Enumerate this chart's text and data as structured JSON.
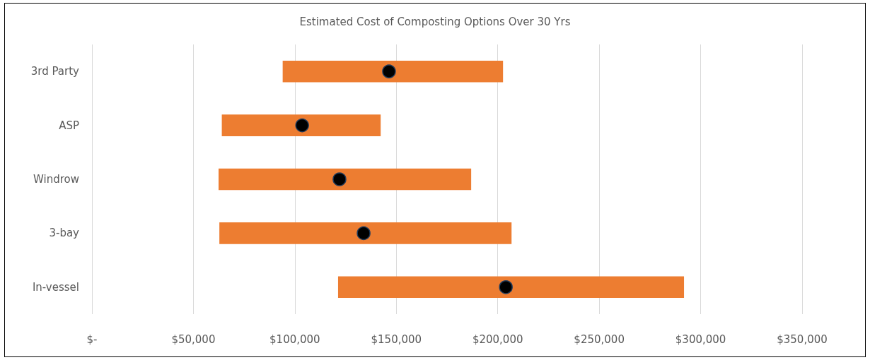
{
  "chart_data": {
    "type": "bar",
    "orientation": "horizontal",
    "title": "Estimated Cost of Composting Options Over 30 Yrs",
    "categories": [
      "3rd Party",
      "ASP",
      "Windrow",
      "3-bay",
      "In-vessel"
    ],
    "series": [
      {
        "color": "#ed7d31",
        "base": [
          94000,
          64000,
          62400,
          62800,
          121300
        ],
        "values": [
          108600,
          78300,
          124500,
          144000,
          170500
        ]
      },
      {
        "type": "scatter",
        "color": "#000000",
        "x": [
          "3rd Party",
          "ASP",
          "Windrow",
          "3-bay",
          "In-vessel"
        ],
        "values": [
          146400,
          103600,
          122000,
          133900,
          204000
        ]
      }
    ],
    "xlim": [
      0,
      350000
    ],
    "xticks": [
      {
        "value": 0,
        "label": "$-"
      },
      {
        "value": 50000,
        "label": "$50,000"
      },
      {
        "value": 100000,
        "label": "$100,000"
      },
      {
        "value": 150000,
        "label": "$150,000"
      },
      {
        "value": 200000,
        "label": "$200,000"
      },
      {
        "value": 250000,
        "label": "$250,000"
      },
      {
        "value": 300000,
        "label": "$300,000"
      },
      {
        "value": 350000,
        "label": "$350,000"
      }
    ],
    "grid": "x",
    "marker": "circle"
  }
}
